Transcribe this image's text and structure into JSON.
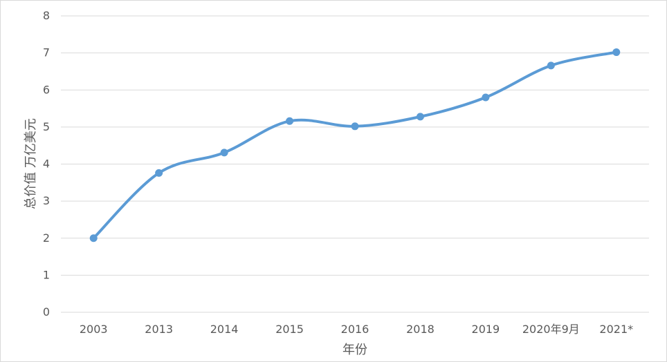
{
  "chart_data": {
    "type": "line",
    "title": "",
    "xlabel": "年份",
    "ylabel": "总价值 万亿美元",
    "categories": [
      "2003",
      "2013",
      "2014",
      "2015",
      "2016",
      "2018",
      "2019",
      "2020年9月",
      "2021*"
    ],
    "series": [
      {
        "values": [
          2.0,
          3.76,
          4.31,
          5.16,
          5.02,
          5.28,
          5.8,
          6.66,
          7.02
        ],
        "color": "#5b9bd5",
        "smooth": true,
        "markers": true
      }
    ],
    "ylim": [
      0,
      8
    ],
    "yticks": [
      "0",
      "1",
      "2",
      "3",
      "4",
      "5",
      "6",
      "7",
      "8"
    ],
    "grid": true,
    "legend": "none"
  }
}
